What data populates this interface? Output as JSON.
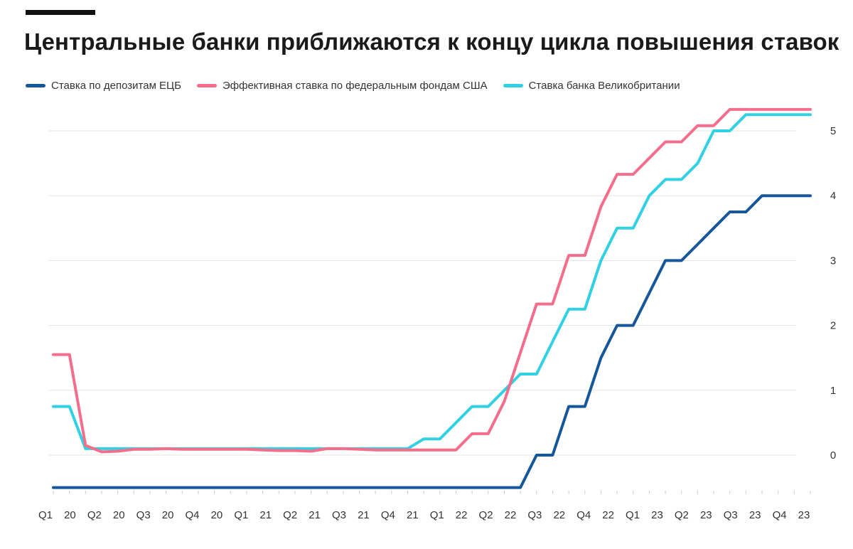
{
  "header": {
    "title": "Центральные банки приближаются к концу цикла повышения ставок"
  },
  "colors": {
    "ecb": "#16569b",
    "fed": "#f46e8c",
    "boe": "#31d0e3",
    "grid": "#e6e6e6",
    "text": "#333333"
  },
  "chart_data": {
    "type": "line",
    "title": "Центральные банки приближаются к концу цикла повышения ставок",
    "xlabel": "",
    "ylabel": "",
    "ylim": [
      -0.5,
      5.4
    ],
    "yticks": [
      "0",
      "1",
      "2",
      "3",
      "4",
      "5"
    ],
    "y_axis_side": "right",
    "grid": "horizontal",
    "legend_position": "top",
    "x_tick_labels": [
      "Q1",
      "20",
      "Q2",
      "20",
      "Q3",
      "20",
      "Q4",
      "20",
      "Q1",
      "21",
      "Q2",
      "21",
      "Q3",
      "21",
      "Q4",
      "21",
      "Q1",
      "22",
      "Q2",
      "22",
      "Q3",
      "22",
      "Q4",
      "22",
      "Q1",
      "23",
      "Q2",
      "23",
      "Q3",
      "23",
      "Q4",
      "23"
    ],
    "x": [
      "2020-01",
      "2020-02",
      "2020-03",
      "2020-04",
      "2020-05",
      "2020-06",
      "2020-07",
      "2020-08",
      "2020-09",
      "2020-10",
      "2020-11",
      "2020-12",
      "2021-01",
      "2021-02",
      "2021-03",
      "2021-04",
      "2021-05",
      "2021-06",
      "2021-07",
      "2021-08",
      "2021-09",
      "2021-10",
      "2021-11",
      "2021-12",
      "2022-01",
      "2022-02",
      "2022-03",
      "2022-04",
      "2022-05",
      "2022-06",
      "2022-07",
      "2022-08",
      "2022-09",
      "2022-10",
      "2022-11",
      "2022-12",
      "2023-01",
      "2023-02",
      "2023-03",
      "2023-04",
      "2023-05",
      "2023-06",
      "2023-07",
      "2023-08",
      "2023-09",
      "2023-10",
      "2023-11",
      "2023-12"
    ],
    "series": [
      {
        "name": "Ставка по депозитам ЕЦБ",
        "color": "#16569b",
        "values": [
          -0.5,
          -0.5,
          -0.5,
          -0.5,
          -0.5,
          -0.5,
          -0.5,
          -0.5,
          -0.5,
          -0.5,
          -0.5,
          -0.5,
          -0.5,
          -0.5,
          -0.5,
          -0.5,
          -0.5,
          -0.5,
          -0.5,
          -0.5,
          -0.5,
          -0.5,
          -0.5,
          -0.5,
          -0.5,
          -0.5,
          -0.5,
          -0.5,
          -0.5,
          -0.5,
          0,
          0,
          0.75,
          0.75,
          1.5,
          2,
          2,
          2.5,
          3,
          3,
          3.25,
          3.5,
          3.75,
          3.75,
          4,
          4,
          4,
          4
        ]
      },
      {
        "name": "Эффективная ставка по федеральным фондам США",
        "color": "#f46e8c",
        "values": [
          1.55,
          1.55,
          0.15,
          0.05,
          0.06,
          0.09,
          0.09,
          0.1,
          0.09,
          0.09,
          0.09,
          0.09,
          0.09,
          0.08,
          0.07,
          0.07,
          0.06,
          0.1,
          0.1,
          0.09,
          0.08,
          0.08,
          0.08,
          0.08,
          0.08,
          0.08,
          0.33,
          0.33,
          0.83,
          1.58,
          2.33,
          2.33,
          3.08,
          3.08,
          3.83,
          4.33,
          4.33,
          4.58,
          4.83,
          4.83,
          5.08,
          5.08,
          5.33,
          5.33,
          5.33,
          5.33,
          5.33,
          5.33
        ]
      },
      {
        "name": "Ставка банка Великобритании",
        "color": "#31d0e3",
        "values": [
          0.75,
          0.75,
          0.1,
          0.1,
          0.1,
          0.1,
          0.1,
          0.1,
          0.1,
          0.1,
          0.1,
          0.1,
          0.1,
          0.1,
          0.1,
          0.1,
          0.1,
          0.1,
          0.1,
          0.1,
          0.1,
          0.1,
          0.1,
          0.25,
          0.25,
          0.5,
          0.75,
          0.75,
          1,
          1.25,
          1.25,
          1.75,
          2.25,
          2.25,
          3,
          3.5,
          3.5,
          4,
          4.25,
          4.25,
          4.5,
          5,
          5,
          5.25,
          5.25,
          5.25,
          5.25,
          5.25
        ]
      }
    ]
  }
}
